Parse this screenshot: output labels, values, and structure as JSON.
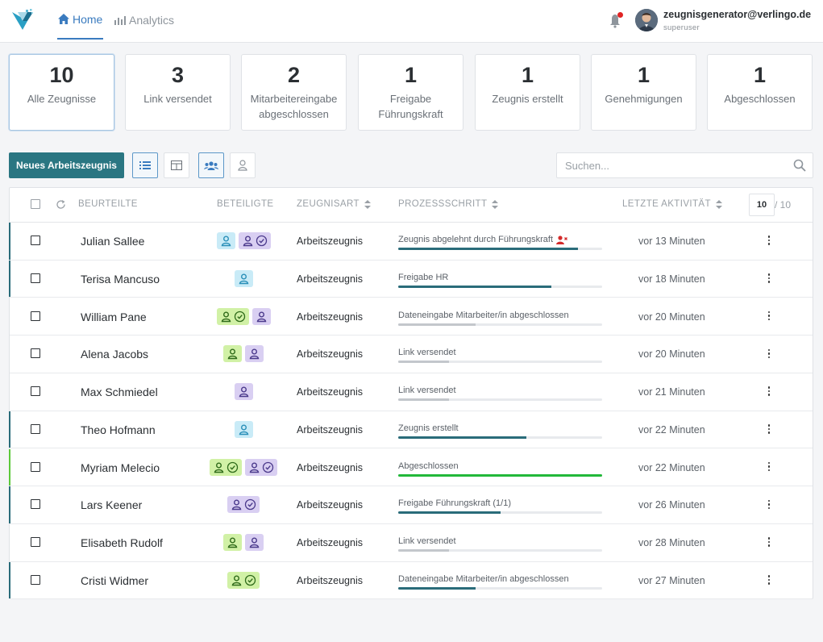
{
  "nav": {
    "home_label": "Home",
    "analytics_label": "Analytics",
    "user_email": "zeugnisgenerator@verlingo.de",
    "user_role": "superuser"
  },
  "stats": [
    {
      "count": "10",
      "label": "Alle Zeugnisse"
    },
    {
      "count": "3",
      "label": "Link versendet"
    },
    {
      "count": "2",
      "label": "Mitarbeitereingabe abgeschlossen"
    },
    {
      "count": "1",
      "label": "Freigabe Führungskraft"
    },
    {
      "count": "1",
      "label": "Zeugnis erstellt"
    },
    {
      "count": "1",
      "label": "Genehmigungen"
    },
    {
      "count": "1",
      "label": "Abgeschlossen"
    }
  ],
  "toolbar": {
    "new_button": "Neues Arbeitszeugnis",
    "search_placeholder": "Suchen..."
  },
  "table": {
    "headers": {
      "beurteilte": "BEURTEILTE",
      "beteiligte": "BETEILIGTE",
      "zeugnisart": "ZEUGNISART",
      "prozessschritt": "PROZESSSCHRITT",
      "letzte_aktivitaet": "LETZTE AKTIVITÄT"
    },
    "page_size": "10",
    "page_total": "/ 10",
    "rows": [
      {
        "name": "Julian Sallee",
        "art": "Arbeitszeugnis",
        "step": "Zeugnis abgelehnt durch Führungskraft",
        "progress": 0.88,
        "bar_color": "#2a6c7a",
        "time": "vor 13 Minuten",
        "accent": "#2a6c7a",
        "rejected": true,
        "badges": [
          {
            "type": "blue",
            "check": false
          },
          {
            "type": "purple",
            "check": true
          }
        ]
      },
      {
        "name": "Terisa Mancuso",
        "art": "Arbeitszeugnis",
        "step": "Freigabe HR",
        "progress": 0.75,
        "bar_color": "#2a6c7a",
        "time": "vor 18 Minuten",
        "accent": "#2a6c7a",
        "rejected": false,
        "badges": [
          {
            "type": "blue",
            "check": false
          }
        ]
      },
      {
        "name": "William Pane",
        "art": "Arbeitszeugnis",
        "step": "Dateneingabe Mitarbeiter/in abgeschlossen",
        "progress": 0.38,
        "bar_color": "#c3c7cc",
        "time": "vor 20 Minuten",
        "accent": "",
        "rejected": false,
        "badges": [
          {
            "type": "green",
            "check": true
          },
          {
            "type": "purple",
            "check": false
          }
        ]
      },
      {
        "name": "Alena Jacobs",
        "art": "Arbeitszeugnis",
        "step": "Link versendet",
        "progress": 0.25,
        "bar_color": "#c3c7cc",
        "time": "vor 20 Minuten",
        "accent": "",
        "rejected": false,
        "badges": [
          {
            "type": "green",
            "check": false
          },
          {
            "type": "purple",
            "check": false
          }
        ]
      },
      {
        "name": "Max Schmiedel",
        "art": "Arbeitszeugnis",
        "step": "Link versendet",
        "progress": 0.25,
        "bar_color": "#c3c7cc",
        "time": "vor 21 Minuten",
        "accent": "",
        "rejected": false,
        "badges": [
          {
            "type": "purple",
            "check": false
          }
        ]
      },
      {
        "name": "Theo Hofmann",
        "art": "Arbeitszeugnis",
        "step": "Zeugnis erstellt",
        "progress": 0.63,
        "bar_color": "#2a6c7a",
        "time": "vor 22 Minuten",
        "accent": "#2a6c7a",
        "rejected": false,
        "badges": [
          {
            "type": "blue",
            "check": false
          }
        ]
      },
      {
        "name": "Myriam Melecio",
        "art": "Arbeitszeugnis",
        "step": "Abgeschlossen",
        "progress": 1.0,
        "bar_color": "#22b83a",
        "time": "vor 22 Minuten",
        "accent": "#5cc93a",
        "rejected": false,
        "badges": [
          {
            "type": "green",
            "check": true
          },
          {
            "type": "purple",
            "check": true
          }
        ]
      },
      {
        "name": "Lars Keener",
        "art": "Arbeitszeugnis",
        "step": "Freigabe Führungskraft (1/1)",
        "progress": 0.5,
        "bar_color": "#2a6c7a",
        "time": "vor 26 Minuten",
        "accent": "#2a6c7a",
        "rejected": false,
        "badges": [
          {
            "type": "purple",
            "check": true
          }
        ]
      },
      {
        "name": "Elisabeth Rudolf",
        "art": "Arbeitszeugnis",
        "step": "Link versendet",
        "progress": 0.25,
        "bar_color": "#c3c7cc",
        "time": "vor 28 Minuten",
        "accent": "",
        "rejected": false,
        "badges": [
          {
            "type": "green",
            "check": false
          },
          {
            "type": "purple",
            "check": false
          }
        ]
      },
      {
        "name": "Cristi Widmer",
        "art": "Arbeitszeugnis",
        "step": "Dateneingabe Mitarbeiter/in abgeschlossen",
        "progress": 0.38,
        "bar_color": "#2a6c7a",
        "time": "vor 27 Minuten",
        "accent": "#2a6c7a",
        "rejected": false,
        "badges": [
          {
            "type": "green",
            "check": true
          }
        ]
      }
    ]
  }
}
